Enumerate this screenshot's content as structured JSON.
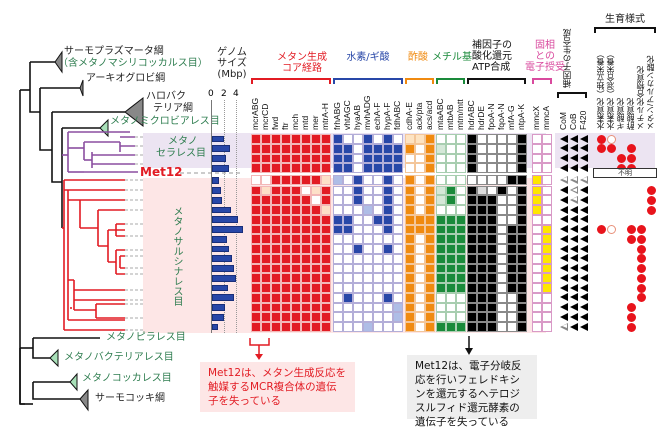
{
  "tree": {
    "clades_top": [
      {
        "label": "サーモプラズマータ綱",
        "color": "#222"
      },
      {
        "label": "（含メタノマシリコッカルス目）",
        "color": "#2e7d4f"
      },
      {
        "label": "アーキオグロビ綱",
        "color": "#222"
      },
      {
        "label": "ハロバク",
        "color": "#222"
      },
      {
        "label": "テリア綱",
        "color": "#222"
      },
      {
        "label": "メタノミクロビアレス目",
        "color": "#2e7d4f"
      }
    ],
    "methanocellales_label_1": "メタノ",
    "methanocellales_label_2": "セラレス目",
    "met12_label": "Met12",
    "methanosarcinales_label": "メタノサルシナレス目",
    "clades_bottom": [
      {
        "label": "メタノピラレス目",
        "color": "#2e7d4f"
      },
      {
        "label": "メタノバクテリアレス目",
        "color": "#2e7d4f"
      },
      {
        "label": "メタノコッカレス目",
        "color": "#2e7d4f"
      },
      {
        "label": "サーモコッキ綱",
        "color": "#222"
      }
    ]
  },
  "genome_size": {
    "title_1": "ゲノム",
    "title_2": "サイズ",
    "title_3": "(Mbp)",
    "ticks": [
      "0",
      "2",
      "4"
    ],
    "values": [
      2.0,
      2.9,
      2.3,
      2.7,
      1.1,
      1.4,
      1.6,
      3.1,
      4.2,
      5.0,
      2.4,
      2.7,
      3.3,
      3.5,
      3.8,
      2.6,
      3.5,
      2.1,
      1.9,
      1.0
    ]
  },
  "groups": [
    {
      "label_1": "メタン生成",
      "label_2": "コア経路",
      "color": "#e21b23"
    },
    {
      "label_1": "水素/ギ酸",
      "label_2": "",
      "color": "#2847a8"
    },
    {
      "label_1": "酢酸",
      "label_2": "",
      "color": "#f08a10"
    },
    {
      "label_1": "メチル基",
      "label_2": "",
      "color": "#1a8a3a"
    },
    {
      "label_1": "補因子の",
      "label_2": "酸化還元",
      "label_3": "ATP合成",
      "color": "#000000"
    },
    {
      "label_1": "固相",
      "label_2": "との",
      "label_3": "電子授受",
      "color": "#d94a9e"
    }
  ],
  "genes": {
    "core": [
      "mcrABG",
      "mcrCD",
      "fwd",
      "ftr",
      "mch",
      "mtd",
      "mer",
      "mtrA-H"
    ],
    "hydrogen": [
      "frhABG",
      "vhtAGC",
      "hyaAB",
      "mvhADG",
      "echA-F",
      "hypA-F",
      "fdhABC"
    ],
    "acetate": [
      "cdhA-E",
      "ack/pta",
      "acs/acd"
    ],
    "methyl": [
      "mtaABC",
      "mtbAB",
      "mtm/mtt"
    ],
    "cofactor": [
      "hdrABC",
      "hdrDE",
      "fpoA-N",
      "fqoA-N",
      "mfA-G",
      "ntpA-K"
    ],
    "electron": [
      "mmcX",
      "mmcA"
    ]
  },
  "cofactor_synthesis": {
    "title": "補因子の生合成",
    "columns": [
      "CoM",
      "CoB",
      "F420"
    ]
  },
  "growth_mode": {
    "title": "生育様式",
    "columns": [
      "水素資化（独立栄養）",
      "水素資化（混合栄養）",
      "ギ酸資化",
      "酢酸資化",
      "メチル化合物資化",
      "メタン/アルカン酸化"
    ],
    "unknown_label": "不明"
  },
  "matrix": {
    "core": [
      "11111111",
      "11111111",
      "11111111",
      "11111111",
      "00111112",
      "12111021",
      "11111101",
      "11111112",
      "11111111",
      "11111111",
      "11111111",
      "11111111",
      "11111111",
      "11111111",
      "11111111",
      "11111111",
      "11111111",
      "11111111",
      "11111111",
      "11111111"
    ],
    "hydrogen": [
      "1001010",
      "1101111",
      "1101111",
      "1101111",
      "2010010",
      "0010010",
      "0010010",
      "0002010",
      "1100110",
      "1100010",
      "0000000",
      "0010010",
      "0000000",
      "0000000",
      "0000000",
      "0000000",
      "0100010",
      "0000002",
      "0000002",
      "0002000"
    ],
    "acetate": [
      "221",
      "101",
      "001",
      "001",
      "101",
      "101",
      "101",
      "101",
      "111",
      "111",
      "101",
      "101",
      "101",
      "101",
      "101",
      "101",
      "101",
      "101",
      "101",
      "101"
    ],
    "methyl": [
      "000",
      "200",
      "000",
      "000",
      "000",
      "210",
      "210",
      "000",
      "111",
      "111",
      "111",
      "111",
      "111",
      "111",
      "111",
      "111",
      "000",
      "000",
      "000",
      "111"
    ],
    "cofactor": [
      "100001",
      "100001",
      "100001",
      "100001",
      "000011",
      "120101",
      "111001",
      "111001",
      "111001",
      "111011",
      "111011",
      "111011",
      "111011",
      "111011",
      "111011",
      "111011",
      "111001",
      "111001",
      "111001",
      "111001"
    ],
    "electron": [
      "00",
      "00",
      "00",
      "00",
      "10",
      "10",
      "10",
      "10",
      "00",
      "01",
      "01",
      "01",
      "01",
      "01",
      "01",
      "01",
      "00",
      "00",
      "00",
      "00"
    ],
    "cofactor_synth": [
      "111",
      "111",
      "111",
      "111",
      "000",
      "101",
      "101",
      "111",
      "111",
      "111",
      "111",
      "111",
      "111",
      "111",
      "111",
      "111",
      "111",
      "111",
      "111",
      "011"
    ],
    "growth": [
      "120000",
      "110100",
      "001100",
      "001100",
      "------",
      "000001",
      "000001",
      "000001",
      "000000",
      "120110",
      "000110",
      "000010",
      "000010",
      "000010",
      "000010",
      "000010",
      "000010",
      "000100",
      "000100",
      "000100"
    ]
  },
  "notes": {
    "mcr_note": "Met12は、メタン生成反応を触媒するMCR複合体の遺伝子を失っている",
    "hdr_note": "Met12は、電子分岐反応を行いフェレドキシンを還元するヘテロジスルフィド還元酵素の遺伝子を失っている"
  },
  "colors": {
    "core": "#e21b23",
    "core_light": "#fde0c8",
    "hydrogen": "#2847a8",
    "hydrogen_light": "#aebde6",
    "acetate": "#f08a10",
    "acetate_light": "#fde3c2",
    "methyl": "#1a8a3a",
    "methyl_light": "#d5e8d8",
    "cofactor": "#000000",
    "cofactor_light": "#dddddd",
    "electron": "#ffe600",
    "methanocellales_bg": "#ece4f2",
    "methanosarcinales_bg": "#fde6e6",
    "methanocellales_branch": "#8b4fa0",
    "methanosarcinales_branch": "#e21b23",
    "dot": "#e8141c"
  }
}
